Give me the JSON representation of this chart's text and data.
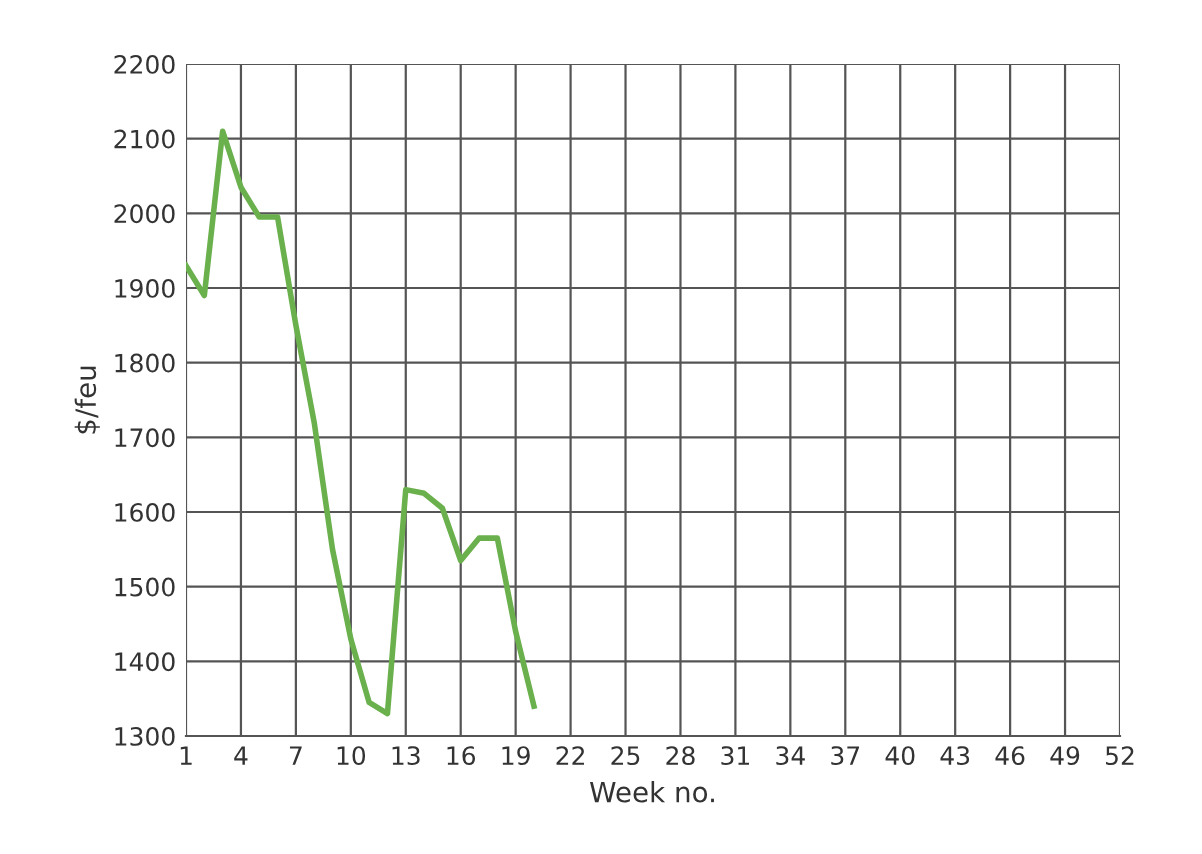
{
  "chart_data": {
    "type": "line",
    "xlabel": "Week no.",
    "ylabel": "$/feu",
    "x": [
      1,
      2,
      3,
      4,
      5,
      6,
      7,
      8,
      9,
      10,
      11,
      12,
      13,
      14,
      15,
      16,
      17,
      18,
      19,
      20
    ],
    "series": [
      {
        "color": "#6ab04c",
        "values": [
          1930,
          1890,
          2110,
          2035,
          1995,
          1995,
          1850,
          1720,
          1550,
          1430,
          1345,
          1330,
          1630,
          1625,
          1605,
          1535,
          1565,
          1565,
          1440,
          1340
        ]
      }
    ],
    "xlim": [
      1,
      52
    ],
    "xticks": [
      1,
      4,
      7,
      10,
      13,
      16,
      19,
      22,
      25,
      28,
      31,
      34,
      37,
      40,
      43,
      46,
      49,
      52
    ],
    "ylim": [
      1300,
      2200
    ],
    "yticks": [
      1300,
      1400,
      1500,
      1600,
      1700,
      1800,
      1900,
      2000,
      2100,
      2200
    ],
    "grid": true,
    "marker": "none",
    "line_style": "solid"
  }
}
